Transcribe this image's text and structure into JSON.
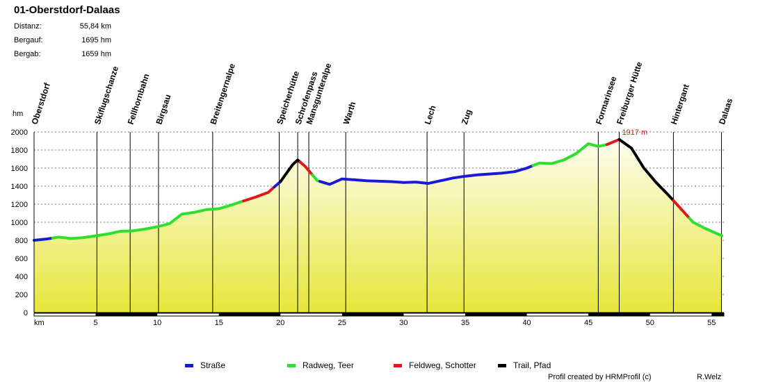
{
  "header": {
    "title": "01-Oberstdorf-Dalaas",
    "stats": [
      {
        "label": "Distanz:",
        "value": "55,84 km"
      },
      {
        "label": "Bergauf:",
        "value": "1695 hm"
      },
      {
        "label": "Bergab:",
        "value": "1659 hm"
      }
    ]
  },
  "legend": [
    {
      "label": "Straße",
      "color": "#1a1ad6"
    },
    {
      "label": "Radweg, Teer",
      "color": "#2ee02e"
    },
    {
      "label": "Feldweg, Schotter",
      "color": "#e01818"
    },
    {
      "label": "Trail, Pfad",
      "color": "#000000"
    }
  ],
  "footer": {
    "credit": "Profil created by HRMProfil (c)",
    "author": "R.Welz"
  },
  "chart_data": {
    "type": "area",
    "ylabel": "hm",
    "xlabel": "km",
    "xlim": [
      0,
      56
    ],
    "ylim": [
      0,
      2000
    ],
    "yticks": [
      0,
      200,
      400,
      600,
      800,
      1000,
      1200,
      1400,
      1600,
      1800,
      2000
    ],
    "xticks": [
      5,
      10,
      15,
      20,
      25,
      30,
      35,
      40,
      45,
      50,
      55
    ],
    "grid": true,
    "max_annotation": {
      "label": "1917 m",
      "x": 47.5,
      "y": 1917
    },
    "waypoints": [
      {
        "name": "Oberstdorf",
        "km": 0
      },
      {
        "name": "Skiflugschanze",
        "km": 5.1
      },
      {
        "name": "Fellhornbahn",
        "km": 7.8
      },
      {
        "name": "Birgsau",
        "km": 10.1
      },
      {
        "name": "Breitengernalpe",
        "km": 14.5
      },
      {
        "name": "Speicherhütte",
        "km": 19.9
      },
      {
        "name": "Schrofenpass",
        "km": 21.4
      },
      {
        "name": "Mansgunteralpe",
        "km": 22.3
      },
      {
        "name": "Warth",
        "km": 25.3
      },
      {
        "name": "Lech",
        "km": 31.9
      },
      {
        "name": "Zug",
        "km": 34.9
      },
      {
        "name": "Formarinsee",
        "km": 45.8
      },
      {
        "name": "Freiburger Hütte",
        "km": 47.5
      },
      {
        "name": "Hintergant",
        "km": 51.9
      },
      {
        "name": "Dalaas",
        "km": 55.8
      }
    ],
    "profile": [
      [
        0,
        800
      ],
      [
        1,
        815
      ],
      [
        1.5,
        825
      ],
      [
        2,
        835
      ],
      [
        3,
        820
      ],
      [
        4,
        830
      ],
      [
        5,
        850
      ],
      [
        6,
        870
      ],
      [
        7,
        900
      ],
      [
        8,
        905
      ],
      [
        9,
        925
      ],
      [
        10,
        950
      ],
      [
        11,
        985
      ],
      [
        12,
        1090
      ],
      [
        13,
        1110
      ],
      [
        14,
        1140
      ],
      [
        15,
        1150
      ],
      [
        16,
        1190
      ],
      [
        17,
        1235
      ],
      [
        18,
        1280
      ],
      [
        19,
        1330
      ],
      [
        20,
        1450
      ],
      [
        21,
        1640
      ],
      [
        21.4,
        1690
      ],
      [
        22,
        1620
      ],
      [
        23,
        1460
      ],
      [
        24,
        1420
      ],
      [
        25,
        1480
      ],
      [
        26,
        1470
      ],
      [
        27,
        1460
      ],
      [
        28,
        1455
      ],
      [
        29,
        1450
      ],
      [
        30,
        1440
      ],
      [
        31,
        1445
      ],
      [
        32,
        1430
      ],
      [
        33,
        1460
      ],
      [
        34,
        1490
      ],
      [
        35,
        1510
      ],
      [
        36,
        1525
      ],
      [
        37,
        1535
      ],
      [
        38,
        1545
      ],
      [
        39,
        1560
      ],
      [
        40,
        1600
      ],
      [
        41,
        1655
      ],
      [
        42,
        1650
      ],
      [
        43,
        1690
      ],
      [
        44,
        1760
      ],
      [
        45,
        1870
      ],
      [
        45.8,
        1840
      ],
      [
        46.5,
        1860
      ],
      [
        47.5,
        1917
      ],
      [
        48.5,
        1820
      ],
      [
        49.5,
        1600
      ],
      [
        50.5,
        1440
      ],
      [
        51.5,
        1300
      ],
      [
        52.5,
        1150
      ],
      [
        53.5,
        1000
      ],
      [
        54.5,
        930
      ],
      [
        55.84,
        850
      ]
    ],
    "segments": [
      {
        "surface": "Straße",
        "from_km": 0,
        "to_km": 1.5
      },
      {
        "surface": "Radweg, Teer",
        "from_km": 1.5,
        "to_km": 17
      },
      {
        "surface": "Feldweg, Schotter",
        "from_km": 17,
        "to_km": 19.5
      },
      {
        "surface": "Straße",
        "from_km": 19.5,
        "to_km": 20
      },
      {
        "surface": "Trail, Pfad",
        "from_km": 20,
        "to_km": 21.6
      },
      {
        "surface": "Feldweg, Schotter",
        "from_km": 21.6,
        "to_km": 22.6
      },
      {
        "surface": "Radweg, Teer",
        "from_km": 22.6,
        "to_km": 23.2
      },
      {
        "surface": "Straße",
        "from_km": 23.2,
        "to_km": 40.5
      },
      {
        "surface": "Radweg, Teer",
        "from_km": 40.5,
        "to_km": 46.5
      },
      {
        "surface": "Feldweg, Schotter",
        "from_km": 46.5,
        "to_km": 47.5
      },
      {
        "surface": "Trail, Pfad",
        "from_km": 47.5,
        "to_km": 51.9
      },
      {
        "surface": "Feldweg, Schotter",
        "from_km": 51.9,
        "to_km": 53.2
      },
      {
        "surface": "Radweg, Teer",
        "from_km": 53.2,
        "to_km": 55.84
      }
    ]
  }
}
